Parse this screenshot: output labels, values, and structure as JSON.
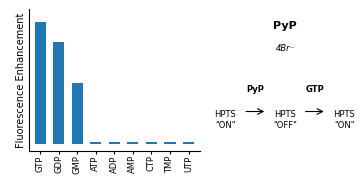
{
  "chart_data": {
    "type": "bar",
    "categories": [
      "GTP",
      "GDP",
      "GMP",
      "ATP",
      "ADP",
      "AMP",
      "CTP",
      "TMP",
      "UTP"
    ],
    "values": [
      10.0,
      8.3,
      5.0,
      0.12,
      0.12,
      0.12,
      0.12,
      0.12,
      0.12
    ],
    "ylabel": "Fluorescence Enhancement",
    "ylim": [
      -0.6,
      11.0
    ],
    "yticks": [],
    "tick_labels": "x",
    "grid": false,
    "annotations": [
      "PyP",
      "4Br⁻",
      "HPTS\n\"ON\"",
      "PyP",
      "HPTS\n\"OFF\"",
      "GTP",
      "HPTS\n\"ON\""
    ]
  }
}
